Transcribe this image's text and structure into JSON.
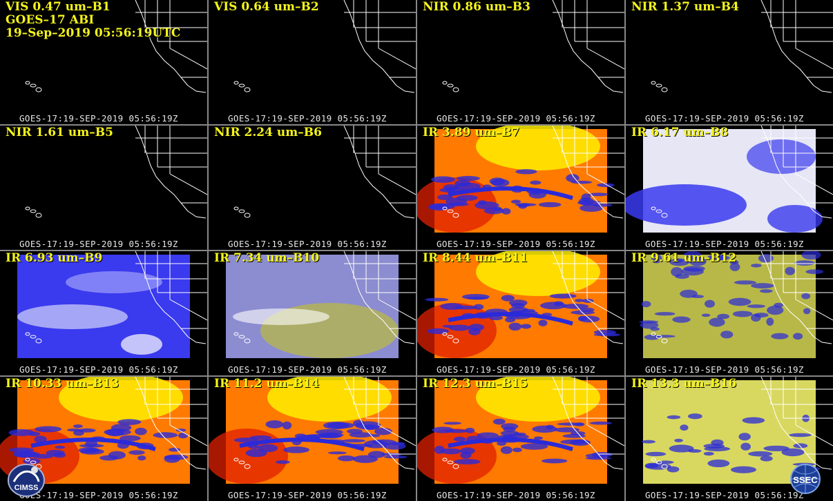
{
  "header": {
    "line2": "GOES–17 ABI",
    "line3": "19–Sep–2019 05:56:19UTC"
  },
  "timestamp": "GOES-17:19-SEP-2019 05:56:19Z",
  "panels": [
    {
      "label": "VIS 0.47 um–B1",
      "kind": "dark"
    },
    {
      "label": "VIS 0.64 um–B2",
      "kind": "dark"
    },
    {
      "label": "NIR 0.86 um–B3",
      "kind": "dark"
    },
    {
      "label": "NIR 1.37 um–B4",
      "kind": "dark"
    },
    {
      "label": "NIR 1.61 um–B5",
      "kind": "dark"
    },
    {
      "label": "NIR 2.24 um–B6",
      "kind": "dark"
    },
    {
      "label": "IR 3.89 um–B7",
      "kind": "warm"
    },
    {
      "label": "IR 6.17 um–B8",
      "kind": "wv_light"
    },
    {
      "label": "IR 6.93 um–B9",
      "kind": "wv_deep"
    },
    {
      "label": "IR 7.34 um–B10",
      "kind": "wv_olive"
    },
    {
      "label": "IR 8.44 um–B11",
      "kind": "warm"
    },
    {
      "label": "IR 9.61 um–B12",
      "kind": "olive"
    },
    {
      "label": "IR 10.33 um–B13",
      "kind": "warm"
    },
    {
      "label": "IR 11.2 um–B14",
      "kind": "warm"
    },
    {
      "label": "IR 12.3 um–B15",
      "kind": "warm"
    },
    {
      "label": "IR 13.3 um–B16",
      "kind": "yellow"
    }
  ],
  "logos": {
    "cimss": "CIMSS",
    "ssec": "SSEC"
  },
  "colors": {
    "label": "#f5f51a",
    "map_lines": "#ffffff",
    "ir_warm_low": "#e02000",
    "ir_warm_mid": "#ff7a00",
    "ir_warm_high": "#ffee00",
    "cloud_blue": "#2a2ad8",
    "wv_blue": "#3a3aee",
    "olive": "#b8b848"
  }
}
